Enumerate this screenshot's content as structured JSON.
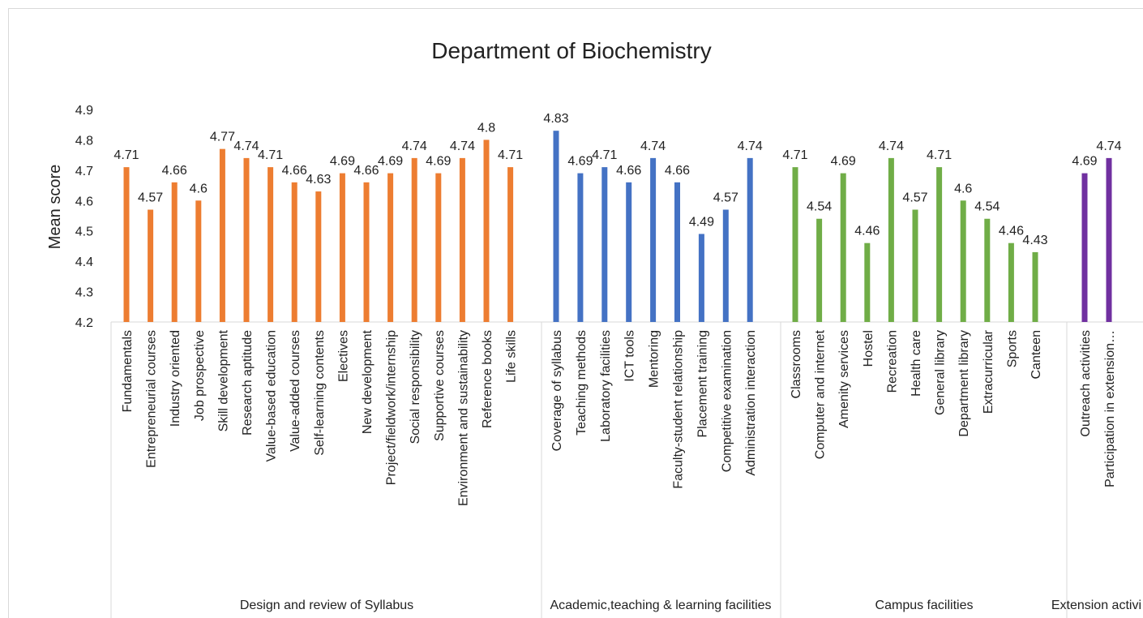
{
  "chart_data": {
    "type": "bar",
    "title": "Department of Biochemistry",
    "ylabel": "Mean score",
    "ylim": [
      4.2,
      4.9
    ],
    "yticks": [
      4.2,
      4.3,
      4.4,
      4.5,
      4.6,
      4.7,
      4.8,
      4.9
    ],
    "groups": [
      {
        "name": "Design and review of Syllabus",
        "color": "#ED7D31",
        "categories": [
          "Fundamentals",
          "Entrepreneurial courses",
          "Industry oriented",
          "Job prospective",
          "Skill development",
          "Research aptitude",
          "Value-based education",
          "Value-added courses",
          "Self-learning contents",
          "Electives",
          "New development",
          "Project/fieldwork/internship",
          "Social responsibility",
          "Supportive courses",
          "Environment and sustainability",
          "Reference books",
          "Life skills"
        ],
        "values": [
          4.71,
          4.57,
          4.66,
          4.6,
          4.77,
          4.74,
          4.71,
          4.66,
          4.63,
          4.69,
          4.66,
          4.69,
          4.74,
          4.69,
          4.74,
          4.8,
          4.71
        ]
      },
      {
        "name": "Academic,teaching & learning facilities",
        "color": "#4472C4",
        "categories": [
          "Coverage of syllabus",
          "Teaching methods",
          "Laboratory facilities",
          "ICT tools",
          "Mentoring",
          "Faculty-student relationship",
          "Placement training",
          "Competitive examination",
          "Administration interaction"
        ],
        "values": [
          4.83,
          4.69,
          4.71,
          4.66,
          4.74,
          4.66,
          4.49,
          4.57,
          4.74
        ]
      },
      {
        "name": "Campus facilities",
        "color": "#70AD47",
        "categories": [
          "Classrooms",
          "Computer and internet",
          "Amenity services",
          "Hostel",
          "Recreation",
          "Health care",
          "General library",
          "Department library",
          "Extracurricular",
          "Sports",
          "Canteen"
        ],
        "values": [
          4.71,
          4.54,
          4.69,
          4.46,
          4.74,
          4.57,
          4.71,
          4.6,
          4.54,
          4.46,
          4.43
        ]
      },
      {
        "name": "Extension activi",
        "color": "#7030A0",
        "categories": [
          "Outreach activities",
          "Participation in extension…"
        ],
        "values": [
          4.69,
          4.74
        ]
      }
    ]
  }
}
